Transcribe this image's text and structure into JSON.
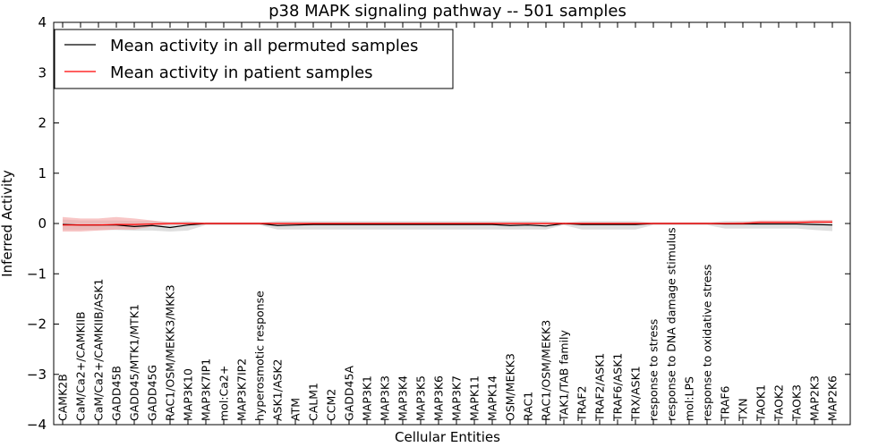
{
  "chart_data": {
    "type": "line",
    "title": "p38 MAPK signaling pathway -- 501 samples",
    "xlabel": "Cellular Entities",
    "ylabel": "Inferred Activity",
    "ylim": [
      -4,
      4
    ],
    "yticks": [
      -4,
      -3,
      -2,
      -1,
      0,
      1,
      2,
      3,
      4
    ],
    "ytick_labels": [
      "−4",
      "−3",
      "−2",
      "−1",
      "0",
      "1",
      "2",
      "3",
      "4"
    ],
    "legend_position": "top-left",
    "categories": [
      "CAMK2B",
      "CaM/Ca2+/CAMKIIB",
      "CaM/Ca2+/CAMKIIB/ASK1",
      "GADD45B",
      "GADD45/MTK1/MTK1",
      "GADD45G",
      "RAC1/OSM/MEKK3/MKK3",
      "MAP3K10",
      "MAP3K7IP1",
      "mol:Ca2+",
      "MAP3K7IP2",
      "hyperosmotic response",
      "ASK1/ASK2",
      "ATM",
      "CALM1",
      "CCM2",
      "GADD45A",
      "MAP3K1",
      "MAP3K3",
      "MAP3K4",
      "MAP3K5",
      "MAP3K6",
      "MAP3K7",
      "MAPK11",
      "MAPK14",
      "OSM/MEKK3",
      "RAC1",
      "RAC1/OSM/MEKK3",
      "TAK1/TAB family",
      "TRAF2",
      "TRAF2/ASK1",
      "TRAF6/ASK1",
      "TRX/ASK1",
      "response to stress",
      "response to DNA damage stimulus",
      "mol:LPS",
      "response to oxidative stress",
      "TRAF6",
      "TXN",
      "TAOK1",
      "TAOK2",
      "TAOK3",
      "MAP2K3",
      "MAP2K6"
    ],
    "series": [
      {
        "name": "Mean activity in all permuted samples",
        "color": "#000000",
        "band_color": "#d9d9d9",
        "values": [
          -0.02,
          -0.03,
          -0.03,
          -0.03,
          -0.06,
          -0.04,
          -0.08,
          -0.03,
          0.0,
          0.0,
          0.0,
          0.0,
          -0.04,
          -0.03,
          -0.02,
          -0.02,
          -0.02,
          -0.02,
          -0.02,
          -0.02,
          -0.02,
          -0.02,
          -0.02,
          -0.02,
          -0.02,
          -0.04,
          -0.03,
          -0.05,
          0.0,
          -0.02,
          -0.02,
          -0.02,
          -0.02,
          0.0,
          0.0,
          0.0,
          0.0,
          -0.01,
          -0.01,
          -0.01,
          -0.01,
          -0.01,
          -0.02,
          -0.03
        ],
        "lower": [
          -0.13,
          -0.13,
          -0.13,
          -0.13,
          -0.14,
          -0.14,
          -0.16,
          -0.14,
          -0.03,
          -0.03,
          -0.03,
          -0.03,
          -0.12,
          -0.12,
          -0.12,
          -0.12,
          -0.12,
          -0.12,
          -0.12,
          -0.12,
          -0.12,
          -0.12,
          -0.12,
          -0.12,
          -0.12,
          -0.12,
          -0.12,
          -0.12,
          -0.03,
          -0.12,
          -0.12,
          -0.12,
          -0.12,
          -0.03,
          -0.03,
          -0.03,
          -0.03,
          -0.1,
          -0.1,
          -0.1,
          -0.1,
          -0.1,
          -0.13,
          -0.15
        ],
        "upper": [
          0.08,
          0.06,
          0.06,
          0.06,
          0.05,
          0.05,
          0.03,
          0.05,
          0.02,
          0.02,
          0.02,
          0.02,
          0.05,
          0.05,
          0.05,
          0.05,
          0.05,
          0.05,
          0.05,
          0.05,
          0.05,
          0.05,
          0.05,
          0.05,
          0.05,
          0.05,
          0.05,
          0.05,
          0.02,
          0.05,
          0.05,
          0.05,
          0.05,
          0.02,
          0.02,
          0.02,
          0.02,
          0.05,
          0.05,
          0.05,
          0.05,
          0.05,
          0.06,
          0.06
        ]
      },
      {
        "name": "Mean activity in patient samples",
        "color": "#ff0000",
        "band_color": "#f4a0a0",
        "values": [
          -0.03,
          -0.03,
          -0.03,
          -0.02,
          -0.02,
          -0.01,
          0.0,
          0.0,
          0.0,
          0.0,
          0.0,
          0.0,
          0.0,
          0.0,
          0.0,
          0.0,
          0.0,
          0.0,
          0.0,
          0.0,
          0.0,
          0.0,
          0.0,
          0.0,
          0.0,
          0.0,
          0.0,
          0.0,
          0.0,
          0.0,
          0.0,
          0.0,
          0.0,
          0.0,
          0.0,
          0.0,
          0.0,
          0.0,
          0.0,
          0.02,
          0.02,
          0.02,
          0.03,
          0.03
        ],
        "lower": [
          -0.16,
          -0.16,
          -0.14,
          -0.12,
          -0.12,
          -0.06,
          -0.02,
          -0.02,
          -0.02,
          -0.02,
          -0.02,
          -0.02,
          -0.02,
          -0.02,
          -0.02,
          -0.02,
          -0.02,
          -0.02,
          -0.02,
          -0.02,
          -0.02,
          -0.02,
          -0.02,
          -0.02,
          -0.02,
          -0.02,
          -0.02,
          -0.02,
          -0.02,
          -0.02,
          -0.02,
          -0.02,
          -0.02,
          -0.02,
          -0.02,
          -0.02,
          -0.02,
          -0.02,
          -0.02,
          -0.01,
          -0.01,
          -0.01,
          0.0,
          0.0
        ],
        "upper": [
          0.13,
          0.1,
          0.1,
          0.13,
          0.1,
          0.06,
          0.02,
          0.02,
          0.02,
          0.02,
          0.02,
          0.02,
          0.02,
          0.02,
          0.02,
          0.02,
          0.02,
          0.02,
          0.02,
          0.02,
          0.02,
          0.02,
          0.02,
          0.02,
          0.02,
          0.02,
          0.02,
          0.02,
          0.02,
          0.02,
          0.02,
          0.02,
          0.02,
          0.02,
          0.02,
          0.02,
          0.02,
          0.02,
          0.03,
          0.06,
          0.06,
          0.06,
          0.07,
          0.07
        ]
      }
    ]
  }
}
